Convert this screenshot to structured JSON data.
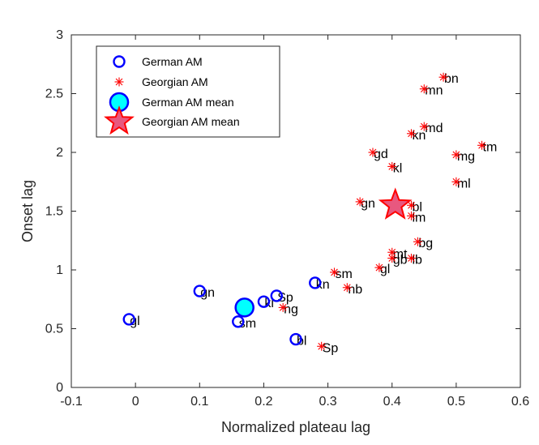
{
  "chart_data": {
    "type": "scatter",
    "title": "",
    "xlabel": "Normalized plateau lag",
    "ylabel": "Onset lag",
    "xlim": [
      -0.1,
      0.6
    ],
    "ylim": [
      0,
      3
    ],
    "xticks": [
      -0.1,
      0,
      0.1,
      0.2,
      0.3,
      0.4,
      0.5,
      0.6
    ],
    "yticks": [
      0,
      0.5,
      1,
      1.5,
      2,
      2.5,
      3
    ],
    "xtick_labels": [
      "-0.1",
      "0",
      "0.1",
      "0.2",
      "0.3",
      "0.4",
      "0.5",
      "0.6"
    ],
    "ytick_labels": [
      "0",
      "0.5",
      "1",
      "1.5",
      "2",
      "2.5",
      "3"
    ],
    "grid": false,
    "legend_position": "top-left",
    "colors": {
      "german": "#0000ff",
      "georgian": "#ff0000",
      "german_mean_fill": "#00ffff",
      "georgian_mean_fill": "#e8587f"
    },
    "series": [
      {
        "name": "German AM",
        "marker": "circle",
        "points": [
          {
            "label": "gl",
            "x": -0.01,
            "y": 0.58
          },
          {
            "label": "gn",
            "x": 0.1,
            "y": 0.82
          },
          {
            "label": "sm",
            "x": 0.16,
            "y": 0.56
          },
          {
            "label": "kl",
            "x": 0.2,
            "y": 0.73
          },
          {
            "label": "Sp",
            "x": 0.22,
            "y": 0.78
          },
          {
            "label": "bl",
            "x": 0.25,
            "y": 0.41
          },
          {
            "label": "kn",
            "x": 0.28,
            "y": 0.89
          }
        ]
      },
      {
        "name": "Georgian AM",
        "marker": "asterisk",
        "points": [
          {
            "label": "bn",
            "x": 0.48,
            "y": 2.64
          },
          {
            "label": "mn",
            "x": 0.45,
            "y": 2.54
          },
          {
            "label": "md",
            "x": 0.45,
            "y": 2.22
          },
          {
            "label": "kn",
            "x": 0.43,
            "y": 2.16
          },
          {
            "label": "tm",
            "x": 0.54,
            "y": 2.06
          },
          {
            "label": "gd",
            "x": 0.37,
            "y": 2.0
          },
          {
            "label": "mg",
            "x": 0.5,
            "y": 1.98
          },
          {
            "label": "kl",
            "x": 0.4,
            "y": 1.88
          },
          {
            "label": "ml",
            "x": 0.5,
            "y": 1.75
          },
          {
            "label": "gn",
            "x": 0.35,
            "y": 1.58
          },
          {
            "label": "bl",
            "x": 0.43,
            "y": 1.55
          },
          {
            "label": "lm",
            "x": 0.43,
            "y": 1.46
          },
          {
            "label": "bg",
            "x": 0.44,
            "y": 1.24
          },
          {
            "label": "mt",
            "x": 0.4,
            "y": 1.15
          },
          {
            "label": "gb",
            "x": 0.4,
            "y": 1.1
          },
          {
            "label": "lb",
            "x": 0.43,
            "y": 1.1
          },
          {
            "label": "gl",
            "x": 0.38,
            "y": 1.02
          },
          {
            "label": "sm",
            "x": 0.31,
            "y": 0.98
          },
          {
            "label": "nb",
            "x": 0.33,
            "y": 0.85
          },
          {
            "label": "ng",
            "x": 0.23,
            "y": 0.68
          },
          {
            "label": "Sp",
            "x": 0.29,
            "y": 0.35
          }
        ]
      },
      {
        "name": "German AM mean",
        "marker": "filled-circle",
        "points": [
          {
            "label": "",
            "x": 0.17,
            "y": 0.68
          }
        ]
      },
      {
        "name": "Georgian AM mean",
        "marker": "filled-star",
        "points": [
          {
            "label": "",
            "x": 0.405,
            "y": 1.55
          }
        ]
      }
    ]
  }
}
